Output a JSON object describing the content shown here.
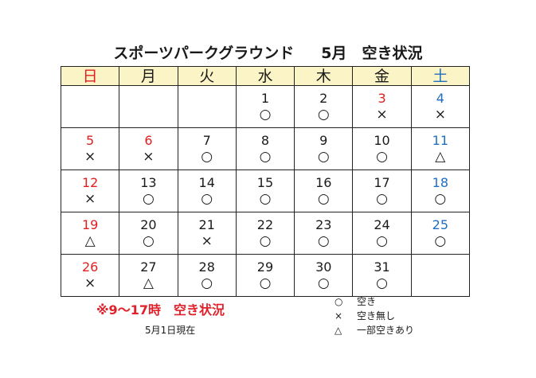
{
  "title": {
    "facility": "スポーツパークグラウンド",
    "month": "5月",
    "status": "空き状況"
  },
  "weekdays": [
    {
      "label": "日",
      "type": "sun"
    },
    {
      "label": "月",
      "type": ""
    },
    {
      "label": "火",
      "type": ""
    },
    {
      "label": "水",
      "type": ""
    },
    {
      "label": "木",
      "type": ""
    },
    {
      "label": "金",
      "type": ""
    },
    {
      "label": "土",
      "type": "sat"
    }
  ],
  "weeks": [
    [
      {
        "day": "",
        "mark": "",
        "type": ""
      },
      {
        "day": "",
        "mark": "",
        "type": ""
      },
      {
        "day": "",
        "mark": "",
        "type": ""
      },
      {
        "day": "1",
        "mark": "○",
        "type": ""
      },
      {
        "day": "2",
        "mark": "○",
        "type": ""
      },
      {
        "day": "3",
        "mark": "×",
        "type": "sun"
      },
      {
        "day": "4",
        "mark": "×",
        "type": "sat"
      }
    ],
    [
      {
        "day": "5",
        "mark": "×",
        "type": "sun"
      },
      {
        "day": "6",
        "mark": "×",
        "type": "sun"
      },
      {
        "day": "7",
        "mark": "○",
        "type": ""
      },
      {
        "day": "8",
        "mark": "○",
        "type": ""
      },
      {
        "day": "9",
        "mark": "○",
        "type": ""
      },
      {
        "day": "10",
        "mark": "○",
        "type": ""
      },
      {
        "day": "11",
        "mark": "△",
        "type": "sat"
      }
    ],
    [
      {
        "day": "12",
        "mark": "×",
        "type": "sun"
      },
      {
        "day": "13",
        "mark": "○",
        "type": ""
      },
      {
        "day": "14",
        "mark": "○",
        "type": ""
      },
      {
        "day": "15",
        "mark": "○",
        "type": ""
      },
      {
        "day": "16",
        "mark": "○",
        "type": ""
      },
      {
        "day": "17",
        "mark": "○",
        "type": ""
      },
      {
        "day": "18",
        "mark": "○",
        "type": "sat"
      }
    ],
    [
      {
        "day": "19",
        "mark": "△",
        "type": "sun"
      },
      {
        "day": "20",
        "mark": "○",
        "type": ""
      },
      {
        "day": "21",
        "mark": "×",
        "type": ""
      },
      {
        "day": "22",
        "mark": "○",
        "type": ""
      },
      {
        "day": "23",
        "mark": "○",
        "type": ""
      },
      {
        "day": "24",
        "mark": "○",
        "type": ""
      },
      {
        "day": "25",
        "mark": "○",
        "type": "sat"
      }
    ],
    [
      {
        "day": "26",
        "mark": "×",
        "type": "sun"
      },
      {
        "day": "27",
        "mark": "△",
        "type": ""
      },
      {
        "day": "28",
        "mark": "○",
        "type": ""
      },
      {
        "day": "29",
        "mark": "○",
        "type": ""
      },
      {
        "day": "30",
        "mark": "○",
        "type": ""
      },
      {
        "day": "31",
        "mark": "○",
        "type": ""
      },
      {
        "day": "",
        "mark": "",
        "type": ""
      }
    ]
  ],
  "note": "※9～17時　空き状況",
  "as_of": "5月1日現在",
  "legend": [
    {
      "symbol": "○",
      "label": "空き"
    },
    {
      "symbol": "×",
      "label": "空き無し"
    },
    {
      "symbol": "△",
      "label": "一部空きあり"
    }
  ],
  "colors": {
    "sunday_holiday": "#e02020",
    "saturday": "#1f6fc0",
    "header_bg": "#fbf4c6",
    "note": "#e0202a"
  }
}
